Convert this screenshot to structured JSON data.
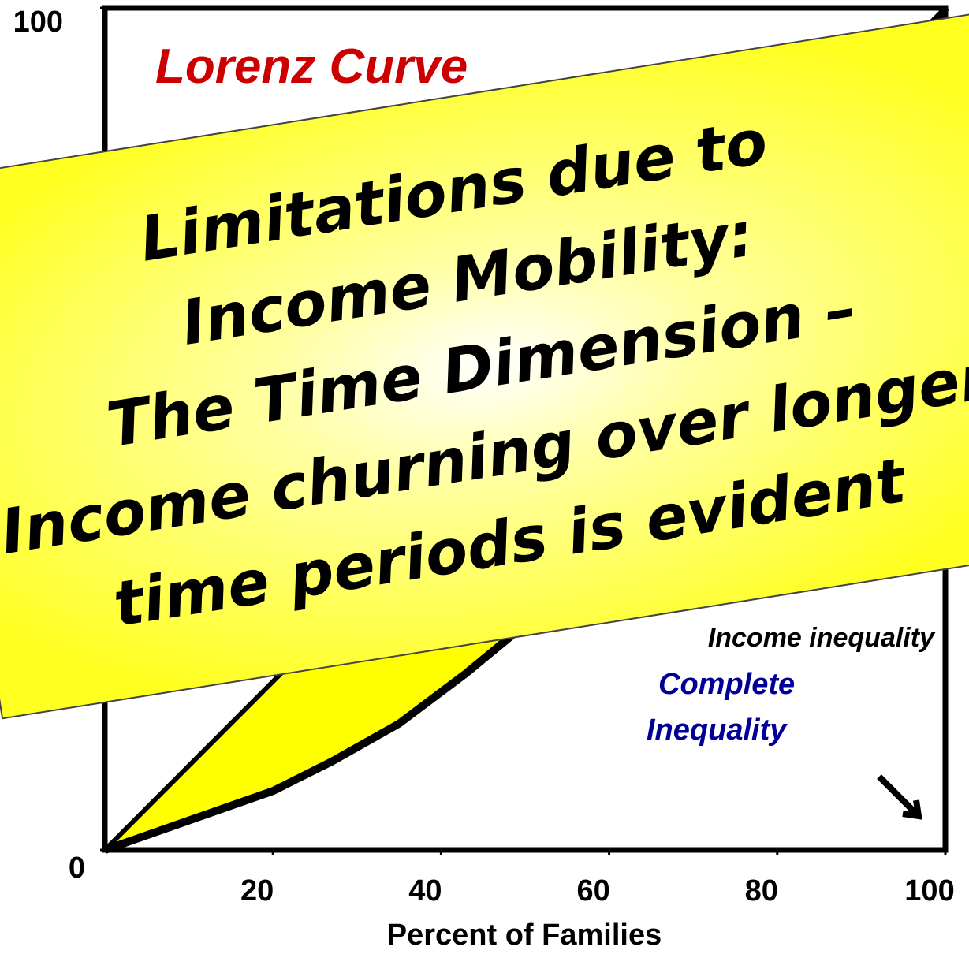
{
  "chart_data": {
    "type": "line",
    "xlabel": "Percent of Families",
    "xlim": [
      0,
      100
    ],
    "ylim": [
      0,
      100
    ],
    "xticks": [
      20,
      40,
      60,
      80,
      100
    ],
    "yticks": [
      0,
      100
    ],
    "fill_color": "#ffff00",
    "series": [
      {
        "color": "#000000",
        "x": [
          0,
          100
        ],
        "values": [
          0,
          100
        ]
      },
      {
        "color": "#000000",
        "x": [
          0,
          10,
          20,
          27,
          35,
          43,
          60,
          80,
          100
        ],
        "values": [
          0,
          3.5,
          7,
          10.5,
          15,
          21,
          35,
          58,
          100
        ]
      }
    ],
    "annotations": [
      "Lorenz Curve",
      "Income inequality",
      "Complete",
      "Inequality"
    ],
    "banner": [
      "Limitations due to",
      "Income Mobility:",
      "The Time Dimension –",
      "Income churning over longer",
      "time periods is evident"
    ]
  }
}
